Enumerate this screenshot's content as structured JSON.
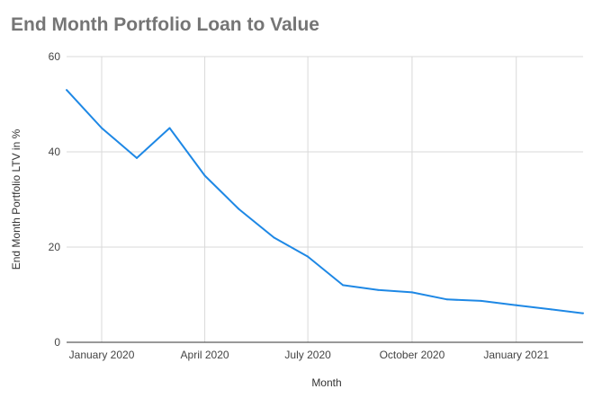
{
  "chart_data": {
    "type": "line",
    "title": "End Month Portfolio Loan to Value",
    "xlabel": "Month",
    "ylabel": "End Month Portfolio LTV in %",
    "ylim": [
      0,
      60
    ],
    "yticks": [
      0,
      20,
      40,
      60
    ],
    "x_tick_labels": [
      {
        "date": "2020-01-01",
        "label": "January 2020"
      },
      {
        "date": "2020-04-01",
        "label": "April 2020"
      },
      {
        "date": "2020-07-01",
        "label": "July 2020"
      },
      {
        "date": "2020-10-01",
        "label": "October 2020"
      },
      {
        "date": "2021-01-01",
        "label": "January 2021"
      }
    ],
    "grid": true,
    "line_color": "#1e88e5",
    "series": [
      {
        "x": [
          "2019-12-01",
          "2020-01-01",
          "2020-02-01",
          "2020-03-01",
          "2020-04-01",
          "2020-05-01",
          "2020-06-01",
          "2020-07-01",
          "2020-08-01",
          "2020-09-01",
          "2020-10-01",
          "2020-11-01",
          "2020-12-01",
          "2021-01-01",
          "2021-02-01",
          "2021-03-01"
        ],
        "values": [
          53,
          45,
          38.7,
          45,
          35,
          28,
          22,
          18,
          12,
          11,
          10.5,
          9,
          8.7,
          7.8,
          6.9,
          6.1
        ]
      }
    ]
  }
}
